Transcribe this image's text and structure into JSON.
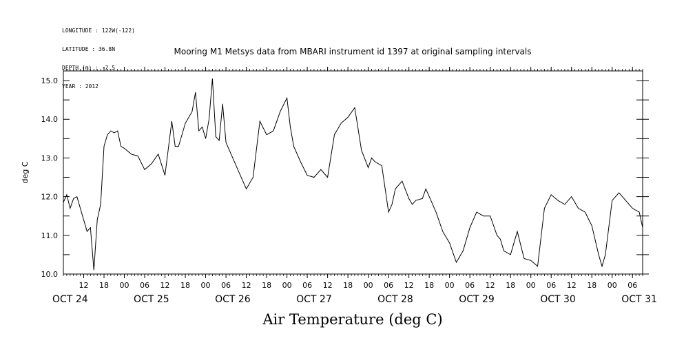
{
  "header": {
    "meta_lines": [
      "LONGITUDE : 122W(-122)",
      "LATITUDE : 36.8N",
      "DEPTH (m) : -2.5",
      "YEAR : 2012"
    ],
    "subtitle": "Mooring M1 Metsys data from MBARI instrument id 1397 at original sampling intervals"
  },
  "chart_data": {
    "type": "line",
    "title": "Air Temperature (deg C)",
    "ylabel": "deg C",
    "xlabel": "",
    "ylim": [
      10.0,
      15.25
    ],
    "xlim_hours_range": [
      "OCT 24 06",
      "OCT 31 09"
    ],
    "y_ticks": [
      "10.0",
      "11.0",
      "12.0",
      "13.0",
      "14.0",
      "15.0"
    ],
    "x_hour_ticks": [
      "12",
      "18",
      "00",
      "06",
      "12",
      "18",
      "00",
      "06",
      "12",
      "18",
      "00",
      "06",
      "12",
      "18",
      "00",
      "06",
      "12",
      "18",
      "00",
      "06",
      "12",
      "18",
      "00",
      "06",
      "12",
      "18",
      "00",
      "06",
      "12",
      "18",
      "00",
      "06"
    ],
    "x_day_labels": [
      "OCT 24",
      "OCT 25",
      "OCT 26",
      "OCT 27",
      "OCT 28",
      "OCT 29",
      "OCT 30",
      "OCT 31"
    ],
    "series": [
      {
        "x": [
          "OCT 24 06",
          "OCT 24 07",
          "OCT 24 08",
          "OCT 24 09",
          "OCT 24 10",
          "OCT 24 11",
          "OCT 24 12",
          "OCT 24 13",
          "OCT 24 14",
          "OCT 24 15",
          "OCT 24 16",
          "OCT 24 17",
          "OCT 24 18",
          "OCT 24 19",
          "OCT 24 20",
          "OCT 24 21",
          "OCT 24 22",
          "OCT 24 23",
          "OCT 25 00",
          "OCT 25 02",
          "OCT 25 04",
          "OCT 25 06",
          "OCT 25 08",
          "OCT 25 10",
          "OCT 25 12",
          "OCT 25 14",
          "OCT 25 15",
          "OCT 25 16",
          "OCT 25 18",
          "OCT 25 20",
          "OCT 25 21",
          "OCT 25 22",
          "OCT 25 23",
          "OCT 26 00",
          "OCT 26 01",
          "OCT 26 02",
          "OCT 26 03",
          "OCT 26 04",
          "OCT 26 05",
          "OCT 26 06",
          "OCT 26 08",
          "OCT 26 10",
          "OCT 26 12",
          "OCT 26 14",
          "OCT 26 16",
          "OCT 26 18",
          "OCT 26 20",
          "OCT 26 22",
          "OCT 27 00",
          "OCT 27 01",
          "OCT 27 02",
          "OCT 27 03",
          "OCT 27 04",
          "OCT 27 06",
          "OCT 27 08",
          "OCT 27 10",
          "OCT 27 12",
          "OCT 27 14",
          "OCT 27 16",
          "OCT 27 18",
          "OCT 27 20",
          "OCT 27 22",
          "OCT 28 00",
          "OCT 28 01",
          "OCT 28 02",
          "OCT 28 04",
          "OCT 28 06",
          "OCT 28 07",
          "OCT 28 08",
          "OCT 28 10",
          "OCT 28 12",
          "OCT 28 13",
          "OCT 28 14",
          "OCT 28 16",
          "OCT 28 17",
          "OCT 28 18",
          "OCT 28 20",
          "OCT 28 22",
          "OCT 29 00",
          "OCT 29 02",
          "OCT 29 04",
          "OCT 29 06",
          "OCT 29 08",
          "OCT 29 10",
          "OCT 29 12",
          "OCT 29 14",
          "OCT 29 15",
          "OCT 29 16",
          "OCT 29 18",
          "OCT 29 20",
          "OCT 29 22",
          "OCT 30 00",
          "OCT 30 02",
          "OCT 30 04",
          "OCT 30 06",
          "OCT 30 08",
          "OCT 30 10",
          "OCT 30 12",
          "OCT 30 14",
          "OCT 30 16",
          "OCT 30 18",
          "OCT 30 20",
          "OCT 30 21",
          "OCT 30 22",
          "OCT 31 00",
          "OCT 31 02",
          "OCT 31 04",
          "OCT 31 06",
          "OCT 31 08",
          "OCT 31 09"
        ],
        "values": [
          11.85,
          12.05,
          11.7,
          11.95,
          12.0,
          11.7,
          11.4,
          11.1,
          11.2,
          10.1,
          11.4,
          11.8,
          13.3,
          13.6,
          13.7,
          13.65,
          13.7,
          13.3,
          13.25,
          13.1,
          13.05,
          12.7,
          12.85,
          13.1,
          12.55,
          13.95,
          13.3,
          13.3,
          13.9,
          14.2,
          14.7,
          13.7,
          13.8,
          13.5,
          14.0,
          15.05,
          13.55,
          13.45,
          14.4,
          13.4,
          13.0,
          12.6,
          12.2,
          12.5,
          13.95,
          13.6,
          13.7,
          14.2,
          14.55,
          13.8,
          13.3,
          13.1,
          12.9,
          12.55,
          12.5,
          12.7,
          12.5,
          13.6,
          13.9,
          14.05,
          14.3,
          13.2,
          12.75,
          13.0,
          12.9,
          12.8,
          11.6,
          11.8,
          12.2,
          12.4,
          11.95,
          11.8,
          11.9,
          11.95,
          12.2,
          12.0,
          11.6,
          11.1,
          10.8,
          10.3,
          10.6,
          11.2,
          11.6,
          11.5,
          11.5,
          11.0,
          10.9,
          10.6,
          10.5,
          11.1,
          10.4,
          10.35,
          10.2,
          11.7,
          12.05,
          11.9,
          11.8,
          12.0,
          11.7,
          11.6,
          11.25,
          10.5,
          10.2,
          10.5,
          11.9,
          12.1,
          11.9,
          11.7,
          11.6,
          11.2
        ]
      }
    ]
  }
}
